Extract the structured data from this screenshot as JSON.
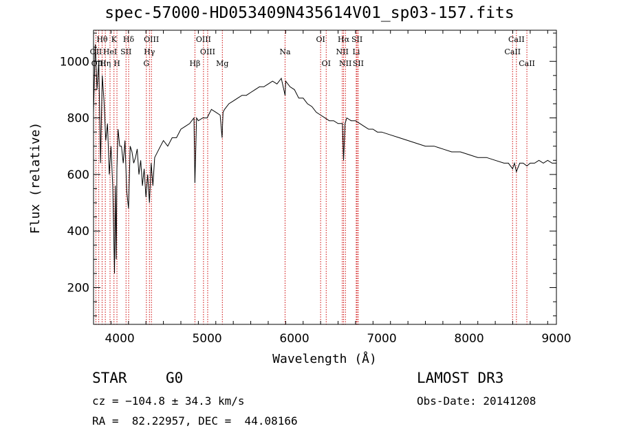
{
  "chart_data": {
    "type": "line",
    "title": "spec-57000-HD053409N435614V01_sp03-157.fits",
    "xlabel": "Wavelength (Å)",
    "ylabel": "Flux (relative)",
    "xlim": [
      3700,
      9000
    ],
    "ylim": [
      70,
      1110
    ],
    "xticks": [
      4000,
      5000,
      6000,
      7000,
      8000,
      9000
    ],
    "yticks": [
      200,
      400,
      600,
      800,
      1000
    ],
    "series": [
      {
        "name": "spectrum",
        "x": [
          3700,
          3720,
          3740,
          3760,
          3780,
          3800,
          3820,
          3840,
          3860,
          3880,
          3900,
          3920,
          3940,
          3950,
          3960,
          3968,
          3980,
          4000,
          4020,
          4040,
          4060,
          4080,
          4101,
          4120,
          4140,
          4160,
          4180,
          4200,
          4220,
          4240,
          4260,
          4280,
          4300,
          4320,
          4340,
          4360,
          4380,
          4400,
          4450,
          4500,
          4550,
          4600,
          4650,
          4700,
          4750,
          4800,
          4850,
          4861,
          4880,
          4900,
          4950,
          5000,
          5050,
          5100,
          5150,
          5172,
          5183,
          5200,
          5250,
          5300,
          5350,
          5400,
          5450,
          5500,
          5550,
          5600,
          5650,
          5700,
          5750,
          5800,
          5850,
          5893,
          5900,
          5950,
          6000,
          6050,
          6100,
          6150,
          6200,
          6250,
          6300,
          6350,
          6400,
          6450,
          6500,
          6550,
          6563,
          6580,
          6600,
          6650,
          6700,
          6750,
          6800,
          6850,
          6900,
          6950,
          7000,
          7100,
          7200,
          7300,
          7400,
          7500,
          7600,
          7700,
          7800,
          7900,
          8000,
          8100,
          8200,
          8300,
          8400,
          8450,
          8498,
          8520,
          8542,
          8580,
          8620,
          8662,
          8700,
          8750,
          8800,
          8850,
          8900,
          8950,
          9000
        ],
        "values": [
          820,
          1060,
          900,
          1000,
          640,
          950,
          860,
          720,
          780,
          600,
          700,
          560,
          250,
          560,
          300,
          620,
          760,
          700,
          700,
          640,
          720,
          540,
          480,
          700,
          680,
          640,
          660,
          690,
          600,
          650,
          560,
          620,
          520,
          600,
          500,
          640,
          560,
          660,
          690,
          720,
          700,
          730,
          730,
          760,
          770,
          780,
          800,
          570,
          800,
          790,
          800,
          800,
          830,
          820,
          810,
          730,
          820,
          830,
          850,
          860,
          870,
          880,
          880,
          890,
          900,
          910,
          910,
          920,
          930,
          920,
          940,
          880,
          930,
          910,
          900,
          870,
          870,
          850,
          840,
          820,
          810,
          800,
          790,
          790,
          780,
          780,
          650,
          780,
          800,
          790,
          790,
          780,
          770,
          760,
          760,
          750,
          750,
          740,
          730,
          720,
          710,
          700,
          700,
          690,
          680,
          680,
          670,
          660,
          660,
          650,
          640,
          640,
          620,
          640,
          610,
          640,
          640,
          630,
          640,
          640,
          650,
          640,
          650,
          640,
          640
        ]
      }
    ],
    "line_markers": [
      {
        "label": "Hθ",
        "wave": 3798,
        "row": 0
      },
      {
        "label": "K",
        "wave": 3934,
        "row": 0
      },
      {
        "label": "Hδ",
        "wave": 4102,
        "row": 0
      },
      {
        "label": "OIII",
        "wave": 4363,
        "row": 0
      },
      {
        "label": "OIII",
        "wave": 4959,
        "row": 0
      },
      {
        "label": "OI",
        "wave": 6300,
        "row": 0
      },
      {
        "label": "Hα",
        "wave": 6563,
        "row": 0
      },
      {
        "label": "SII",
        "wave": 6717,
        "row": 0
      },
      {
        "label": "CaII",
        "wave": 8542,
        "row": 0
      },
      {
        "label": "OII",
        "wave": 3727,
        "row": 1
      },
      {
        "label": "HeI",
        "wave": 3889,
        "row": 1
      },
      {
        "label": "SII",
        "wave": 4072,
        "row": 1
      },
      {
        "label": "Hγ",
        "wave": 4340,
        "row": 1
      },
      {
        "label": "OIII",
        "wave": 5007,
        "row": 1
      },
      {
        "label": "Na",
        "wave": 5893,
        "row": 1
      },
      {
        "label": "NII",
        "wave": 6548,
        "row": 1
      },
      {
        "label": "Li",
        "wave": 6708,
        "row": 1
      },
      {
        "label": "CaII",
        "wave": 8498,
        "row": 1
      },
      {
        "label": "OIII",
        "wave": 3760,
        "row": 2
      },
      {
        "label": "Hη",
        "wave": 3835,
        "row": 2
      },
      {
        "label": "H",
        "wave": 3968,
        "row": 2
      },
      {
        "label": "G",
        "wave": 4305,
        "row": 2
      },
      {
        "label": "Hβ",
        "wave": 4861,
        "row": 2
      },
      {
        "label": "Mg",
        "wave": 5175,
        "row": 2
      },
      {
        "label": "OI",
        "wave": 6364,
        "row": 2
      },
      {
        "label": "NII",
        "wave": 6584,
        "row": 2
      },
      {
        "label": "SII",
        "wave": 6731,
        "row": 2
      },
      {
        "label": "CaII",
        "wave": 8662,
        "row": 2
      }
    ],
    "marker_color": "#cc0000",
    "line_color": "#000000"
  },
  "info": {
    "object_class": "STAR",
    "subclass": "G0",
    "survey": "LAMOST DR3",
    "cz": "cz = −104.8 ± 34.3 km/s",
    "obs_date": "Obs-Date: 20141208",
    "radec": "RA =  82.22957, DEC =  44.08166"
  }
}
